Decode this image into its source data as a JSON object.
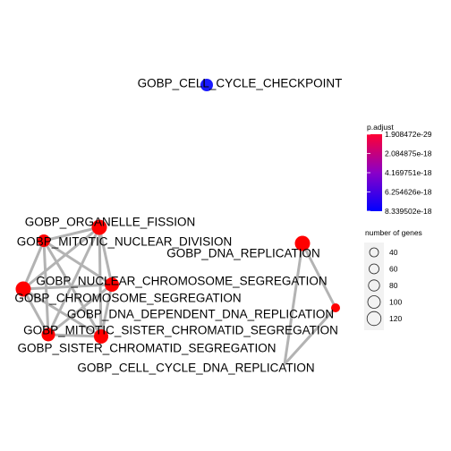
{
  "nodes": [
    {
      "id": "n0",
      "label": "GOBP_CELL_CYCLE_CHECKPOINT",
      "p_adjust": 8.339502e-18,
      "color": "#1a1aff"
    },
    {
      "id": "n1",
      "label": "GOBP_ORGANELLE_FISSION",
      "p_adjust": 1.908472e-29,
      "color": "#ff0000"
    },
    {
      "id": "n2",
      "label": "GOBP_MITOTIC_NUCLEAR_DIVISION",
      "p_adjust": 1.908472e-29,
      "color": "#ff0000"
    },
    {
      "id": "n3",
      "label": "GOBP_DNA_REPLICATION",
      "p_adjust": 1.908472e-29,
      "color": "#ff0000"
    },
    {
      "id": "n4",
      "label": "GOBP_NUCLEAR_CHROMOSOME_SEGREGATION",
      "p_adjust": 1.908472e-29,
      "color": "#ff0000"
    },
    {
      "id": "n5",
      "label": "GOBP_CHROMOSOME_SEGREGATION",
      "p_adjust": 1.908472e-29,
      "color": "#ff0000"
    },
    {
      "id": "n6",
      "label": "GOBP_DNA_DEPENDENT_DNA_REPLICATION",
      "p_adjust": 1.908472e-29,
      "color": "#ff0000"
    },
    {
      "id": "n7",
      "label": "GOBP_MITOTIC_SISTER_CHROMATID_SEGREGATION",
      "p_adjust": 1.908472e-29,
      "color": "#ff0000"
    },
    {
      "id": "n8",
      "label": "GOBP_SISTER_CHROMATID_SEGREGATION",
      "p_adjust": 1.908472e-29,
      "color": "#ff0000"
    },
    {
      "id": "n9",
      "label": "GOBP_CELL_CYCLE_DNA_REPLICATION",
      "p_adjust": 1.908472e-29,
      "color": "#ff0000"
    }
  ],
  "edges": [
    [
      "n1",
      "n2"
    ],
    [
      "n1",
      "n4"
    ],
    [
      "n1",
      "n5"
    ],
    [
      "n1",
      "n7"
    ],
    [
      "n1",
      "n8"
    ],
    [
      "n2",
      "n4"
    ],
    [
      "n2",
      "n5"
    ],
    [
      "n2",
      "n7"
    ],
    [
      "n2",
      "n8"
    ],
    [
      "n4",
      "n5"
    ],
    [
      "n4",
      "n7"
    ],
    [
      "n4",
      "n8"
    ],
    [
      "n5",
      "n7"
    ],
    [
      "n5",
      "n8"
    ],
    [
      "n7",
      "n8"
    ],
    [
      "n3",
      "n6"
    ],
    [
      "n3",
      "n9"
    ],
    [
      "n6",
      "n9"
    ]
  ],
  "legend": {
    "color_title": "p.adjust",
    "color_ticks": [
      "1.908472e-29",
      "2.084875e-18",
      "4.169751e-18",
      "6.254626e-18",
      "8.339502e-18"
    ],
    "color_low": "#ff0033",
    "color_high": "#0000ff",
    "size_title": "number of genes",
    "size_values": [
      "40",
      "60",
      "80",
      "100",
      "120"
    ]
  }
}
